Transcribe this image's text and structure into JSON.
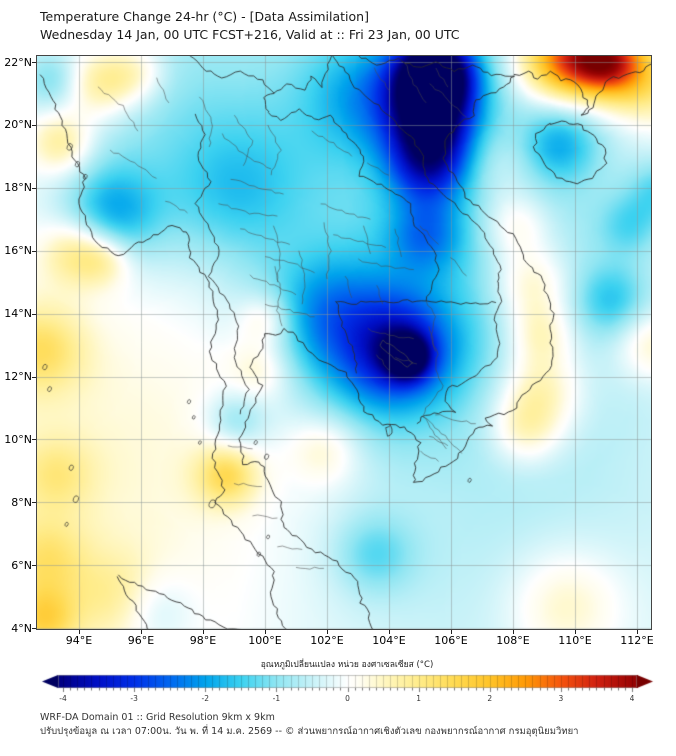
{
  "header": {
    "title": "Temperature Change 24-hr (°C) - [Data Assimilation]",
    "subtitle": "Wednesday 14 Jan, 00 UTC FCST+216, Valid at :: Fri 23 Jan, 00 UTC"
  },
  "axes": {
    "lat_tick_labels": [
      "22°N",
      "20°N",
      "18°N",
      "16°N",
      "14°N",
      "12°N",
      "10°N",
      "8°N",
      "6°N",
      "4°N"
    ],
    "lon_tick_labels": [
      "94°E",
      "96°E",
      "98°E",
      "100°E",
      "102°E",
      "104°E",
      "106°E",
      "108°E",
      "110°E",
      "112°E"
    ]
  },
  "colorbar": {
    "title": "อุณหภูมิเปลี่ยนแปลง หน่วย องศาเซลเซียส (°C)",
    "tick_labels": [
      "-4",
      "-3",
      "-2",
      "-1",
      "0",
      "1",
      "2",
      "3",
      "4"
    ],
    "range": [
      -4,
      4
    ],
    "stops": [
      [
        -4.4,
        "#000060"
      ],
      [
        -4.0,
        "#000088"
      ],
      [
        -3.5,
        "#0010c8"
      ],
      [
        -3.0,
        "#0030e8"
      ],
      [
        -2.5,
        "#0068f0"
      ],
      [
        -2.0,
        "#00a4ec"
      ],
      [
        -1.5,
        "#3cd2f0"
      ],
      [
        -1.0,
        "#90e6f2"
      ],
      [
        -0.5,
        "#c8f2f8"
      ],
      [
        -0.2,
        "#e8fafc"
      ],
      [
        0.0,
        "#ffffff"
      ],
      [
        0.2,
        "#fffdee"
      ],
      [
        0.5,
        "#fff7c2"
      ],
      [
        1.0,
        "#ffec8a"
      ],
      [
        1.5,
        "#ffda52"
      ],
      [
        2.0,
        "#ffc428"
      ],
      [
        2.5,
        "#ff9a06"
      ],
      [
        3.0,
        "#f5540e"
      ],
      [
        3.5,
        "#d02010"
      ],
      [
        4.0,
        "#9a0404"
      ],
      [
        4.4,
        "#780000"
      ]
    ]
  },
  "footer": {
    "line1": "WRF-DA Domain 01 :: Grid Resolution 9km x 9km",
    "line2": "ปรับปรุงข้อมูล ณ เวลา 07:00น. วัน พ. ที่ 14 ม.ค. 2569 -- © ส่วนพยากรณ์อากาศเชิงตัวเลข กองพยากรณ์อากาศ กรมอุตุนิยมวิทยา"
  },
  "chart_data": {
    "type": "heatmap",
    "title": "Temperature Change 24-hr (°C) - [Data Assimilation]",
    "unit": "°C",
    "scale_range": [
      -4,
      4
    ],
    "lon_range": [
      92.6,
      112.5
    ],
    "lat_range": [
      3.9,
      22.2
    ],
    "grid": "on",
    "anomaly_columns": [
      "lon_deg_e",
      "lat_deg_n",
      "radius_deg",
      "delta_t_c"
    ],
    "anomalies": [
      [
        101.3,
        19.0,
        5.5,
        -0.75
      ],
      [
        106.5,
        20.3,
        4.0,
        -0.5
      ],
      [
        96.5,
        20.3,
        2.6,
        -0.5
      ],
      [
        108.1,
        14.9,
        4.5,
        -0.35
      ],
      [
        98.4,
        12.7,
        5.0,
        0.25
      ],
      [
        109.4,
        7.9,
        5.5,
        -0.4
      ],
      [
        95.8,
        8.6,
        4.8,
        0.35
      ],
      [
        103.9,
        5.7,
        4.8,
        -0.3
      ],
      [
        105.48,
        21.75,
        0.85,
        -3.6
      ],
      [
        105.4,
        20.9,
        1.0,
        -2.2
      ],
      [
        105.35,
        19.7,
        0.95,
        -2.0
      ],
      [
        105.26,
        18.6,
        0.9,
        -1.6
      ],
      [
        105.19,
        16.5,
        0.85,
        -1.2
      ],
      [
        109.4,
        22.05,
        0.95,
        2.6
      ],
      [
        110.5,
        22.1,
        0.8,
        2.0
      ],
      [
        111.25,
        22.0,
        0.8,
        2.4
      ],
      [
        112.35,
        21.3,
        1.0,
        1.3
      ],
      [
        94.68,
        21.33,
        0.8,
        1.3
      ],
      [
        95.84,
        21.65,
        0.7,
        0.9
      ],
      [
        93.1,
        21.43,
        0.65,
        -0.8
      ],
      [
        93.42,
        19.42,
        0.7,
        1.2
      ],
      [
        93.9,
        15.93,
        0.75,
        1.2
      ],
      [
        94.87,
        15.7,
        0.6,
        0.9
      ],
      [
        95.06,
        17.2,
        1.1,
        -1.5
      ],
      [
        99.06,
        17.77,
        1.6,
        -0.9
      ],
      [
        103.26,
        20.95,
        1.3,
        -1.1
      ],
      [
        101.77,
        14.11,
        1.3,
        -1.0
      ],
      [
        104.6,
        12.6,
        0.45,
        -2.6
      ],
      [
        104.4,
        12.8,
        1.0,
        -1.6
      ],
      [
        104.06,
        13.0,
        1.9,
        -1.1
      ],
      [
        103.26,
        12.68,
        1.7,
        -0.8
      ],
      [
        109.5,
        19.4,
        0.85,
        -1.1
      ],
      [
        107.58,
        18.79,
        0.9,
        0.6
      ],
      [
        100.03,
        13.8,
        0.6,
        0.9
      ],
      [
        99.84,
        12.2,
        0.7,
        0.7
      ],
      [
        108.1,
        16.8,
        0.8,
        1.0
      ],
      [
        108.58,
        14.9,
        0.9,
        1.2
      ],
      [
        108.9,
        13.3,
        0.75,
        1.0
      ],
      [
        108.9,
        11.57,
        0.95,
        1.2
      ],
      [
        108.4,
        10.3,
        0.8,
        1.0
      ],
      [
        111.2,
        14.43,
        0.8,
        -1.0
      ],
      [
        111.77,
        16.8,
        0.7,
        -0.8
      ],
      [
        112.77,
        17.9,
        0.7,
        -0.9
      ],
      [
        112.45,
        13.0,
        0.8,
        0.9
      ],
      [
        101.97,
        9.66,
        0.8,
        0.8
      ],
      [
        99.06,
        10.55,
        0.7,
        -0.9
      ],
      [
        98.77,
        8.84,
        0.7,
        1.4
      ],
      [
        92.77,
        12.84,
        1.0,
        1.2
      ],
      [
        93.26,
        8.87,
        0.85,
        0.8
      ],
      [
        92.94,
        6.16,
        0.95,
        1.0
      ],
      [
        95.35,
        4.9,
        1.0,
        0.9
      ],
      [
        92.87,
        4.23,
        0.75,
        1.4
      ],
      [
        96.29,
        4.58,
        0.9,
        -0.8
      ],
      [
        109.7,
        4.73,
        1.3,
        0.9
      ],
      [
        103.55,
        6.32,
        0.9,
        -0.9
      ]
    ]
  }
}
